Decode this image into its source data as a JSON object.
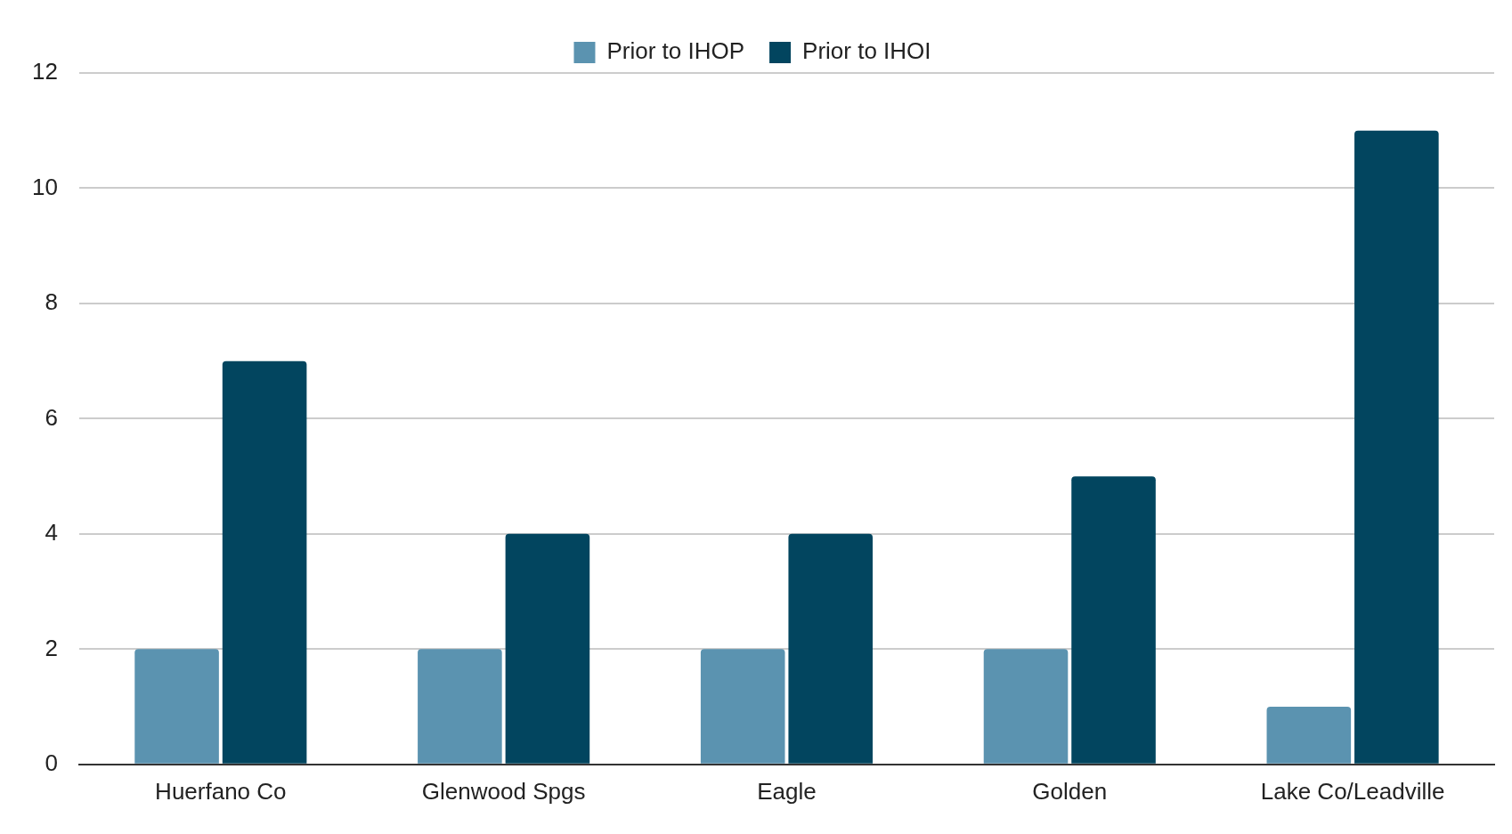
{
  "chart_data": {
    "type": "bar",
    "categories": [
      "Huerfano Co",
      "Glenwood Spgs",
      "Eagle",
      "Golden",
      "Lake Co/Leadville"
    ],
    "series": [
      {
        "name": "Prior to IHOP",
        "color": "#5b93b0",
        "values": [
          2,
          2,
          2,
          2,
          1
        ]
      },
      {
        "name": "Prior to IHOI",
        "color": "#02455f",
        "values": [
          7,
          4,
          4,
          5,
          11
        ]
      }
    ],
    "ylim": [
      0,
      12
    ],
    "yticks": [
      0,
      2,
      4,
      6,
      8,
      10,
      12
    ],
    "grid": "y",
    "legend": "top"
  }
}
